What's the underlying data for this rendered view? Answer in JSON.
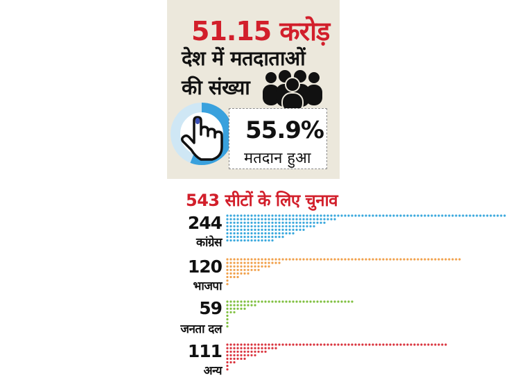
{
  "headline": "51.15 करोड़",
  "subtitle_line1": "देश में मतदाताओं",
  "subtitle_line2": "की संख्या",
  "turnout": {
    "value": "55.9%",
    "label": "मतदान हुआ",
    "fraction": 0.559
  },
  "icons": {
    "people": "people-group-icon",
    "hand": "hand-pointer-icon"
  },
  "colors": {
    "accent": "#d21f2b",
    "ring": "#3aa1dd",
    "card": "#ece8dc"
  },
  "chart_data": {
    "type": "bar",
    "title": "543 सीटों के लिए चुनाव",
    "categories": [
      "कांग्रेस",
      "भाजपा",
      "जनता दल",
      "अन्य"
    ],
    "values": [
      244,
      120,
      59,
      111
    ],
    "value_labels": [
      "244",
      "120",
      "59",
      "111"
    ],
    "colors": [
      "#38a7dc",
      "#f0a04b",
      "#7fbf3f",
      "#d9323c"
    ],
    "total_seats": 543
  }
}
